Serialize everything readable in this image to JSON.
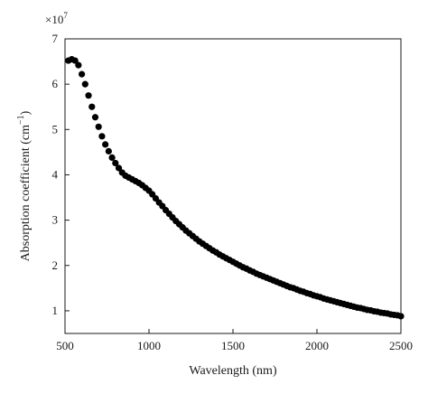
{
  "chart_data": {
    "type": "scatter",
    "title": "",
    "xlabel": "Wavelength (nm)",
    "ylabel_base": "Absorption coefficient (cm",
    "ylabel_exp": "−1",
    "ylabel_tail": ")",
    "y_multiplier_base": "×10",
    "y_multiplier_exp": "7",
    "xlim": [
      500,
      2500
    ],
    "ylim": [
      0.5,
      7
    ],
    "xticks": [
      500,
      1000,
      1500,
      2000,
      2500
    ],
    "yticks": [
      1,
      2,
      3,
      4,
      5,
      6,
      7
    ],
    "grid": false,
    "legend": "none",
    "marker_color": "#000000",
    "series": [
      {
        "x": [
          520,
          540,
          560,
          580,
          600,
          620,
          640,
          660,
          680,
          700,
          720,
          740,
          760,
          780,
          800,
          820,
          840,
          860,
          880,
          900,
          920,
          940,
          960,
          980,
          1000,
          1020,
          1040,
          1060,
          1080,
          1100,
          1120,
          1140,
          1160,
          1180,
          1200,
          1220,
          1240,
          1260,
          1280,
          1300,
          1320,
          1340,
          1360,
          1380,
          1400,
          1420,
          1440,
          1460,
          1480,
          1500,
          1520,
          1540,
          1560,
          1580,
          1600,
          1620,
          1640,
          1660,
          1680,
          1700,
          1720,
          1740,
          1760,
          1780,
          1800,
          1820,
          1840,
          1860,
          1880,
          1900,
          1920,
          1940,
          1960,
          1980,
          2000,
          2020,
          2040,
          2060,
          2080,
          2100,
          2120,
          2140,
          2160,
          2180,
          2200,
          2220,
          2240,
          2260,
          2280,
          2300,
          2320,
          2340,
          2360,
          2380,
          2400,
          2420,
          2440,
          2460,
          2480,
          2500
        ],
        "y": [
          6.52,
          6.55,
          6.52,
          6.42,
          6.22,
          6.0,
          5.75,
          5.5,
          5.27,
          5.06,
          4.85,
          4.67,
          4.52,
          4.38,
          4.26,
          4.15,
          4.05,
          3.98,
          3.94,
          3.9,
          3.86,
          3.82,
          3.77,
          3.71,
          3.65,
          3.57,
          3.48,
          3.39,
          3.31,
          3.22,
          3.14,
          3.06,
          2.98,
          2.91,
          2.84,
          2.77,
          2.71,
          2.65,
          2.59,
          2.53,
          2.48,
          2.43,
          2.38,
          2.33,
          2.29,
          2.24,
          2.2,
          2.16,
          2.12,
          2.08,
          2.04,
          2.0,
          1.96,
          1.93,
          1.89,
          1.86,
          1.82,
          1.79,
          1.76,
          1.73,
          1.7,
          1.67,
          1.64,
          1.61,
          1.58,
          1.55,
          1.52,
          1.5,
          1.47,
          1.44,
          1.42,
          1.39,
          1.37,
          1.34,
          1.32,
          1.3,
          1.27,
          1.25,
          1.23,
          1.21,
          1.19,
          1.17,
          1.15,
          1.13,
          1.11,
          1.09,
          1.07,
          1.06,
          1.04,
          1.02,
          1.01,
          0.99,
          0.98,
          0.96,
          0.95,
          0.94,
          0.92,
          0.91,
          0.9,
          0.88
        ]
      }
    ]
  }
}
